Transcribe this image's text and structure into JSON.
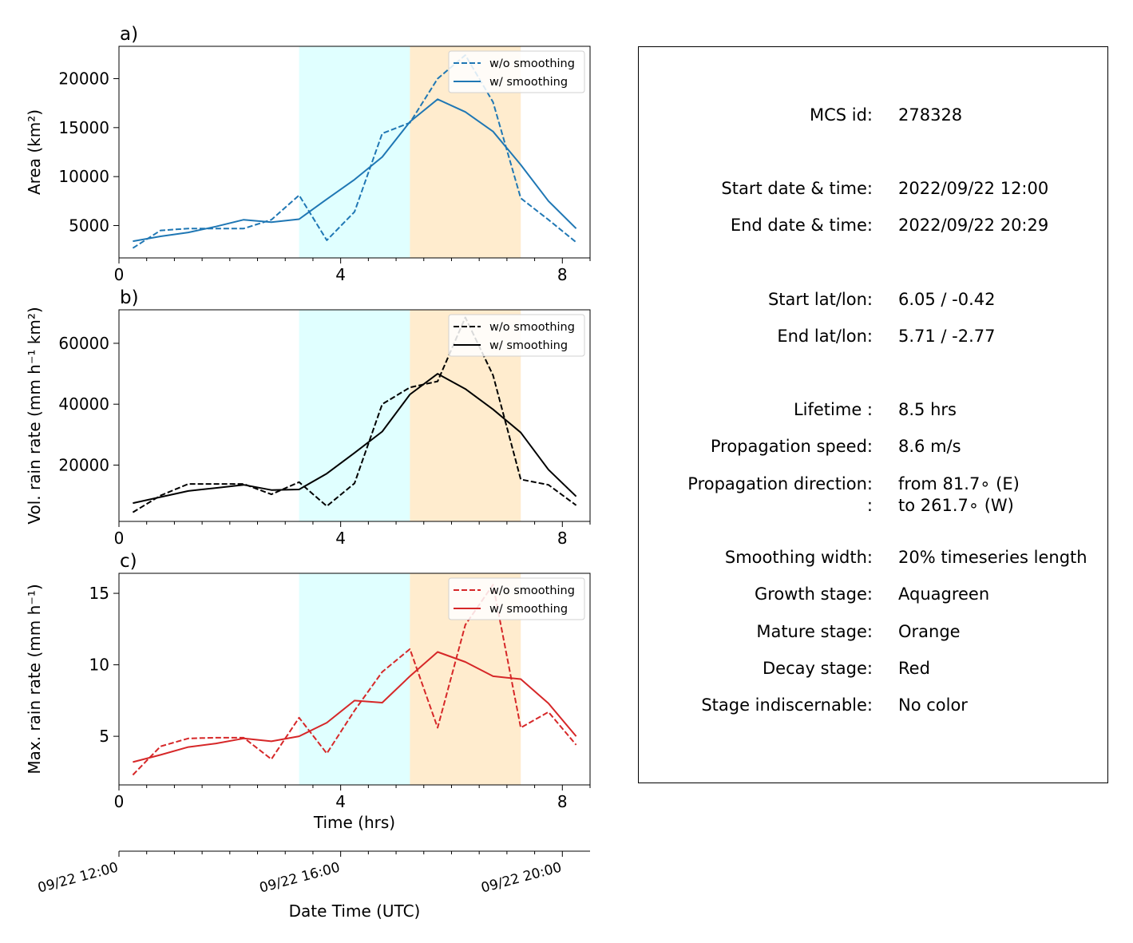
{
  "chart_data": [
    {
      "type": "line",
      "panel_label": "a)",
      "xlabel": "",
      "ylabel": "Area  (km²)",
      "xlim": [
        0,
        8.5
      ],
      "ylim": [
        1700,
        23300
      ],
      "xticks": [
        0,
        4,
        8
      ],
      "yticks": [
        5000,
        10000,
        15000,
        20000
      ],
      "stages": [
        {
          "name": "Growth stage",
          "x0": 3.25,
          "x1": 5.25,
          "color": "#e0ffff"
        },
        {
          "name": "Mature stage",
          "x0": 5.25,
          "x1": 7.25,
          "color": "#ffecce"
        }
      ],
      "legend_position": "upper right",
      "series": [
        {
          "name": "w/o smoothing",
          "style": "dashed",
          "color": "#1f77b4",
          "x": [
            0.25,
            0.75,
            1.25,
            1.75,
            2.25,
            2.75,
            3.25,
            3.75,
            4.25,
            4.75,
            5.25,
            5.75,
            6.25,
            6.75,
            7.25,
            7.75,
            8.25
          ],
          "y": [
            2700,
            4500,
            4700,
            4700,
            4700,
            5600,
            8100,
            3500,
            6400,
            14400,
            15500,
            20000,
            22400,
            17600,
            7800,
            5600,
            3300
          ]
        },
        {
          "name": "w/ smoothing",
          "style": "solid",
          "color": "#1f77b4",
          "x": [
            0.25,
            0.75,
            1.25,
            1.75,
            2.25,
            2.75,
            3.25,
            3.75,
            4.25,
            4.75,
            5.25,
            5.75,
            6.25,
            6.75,
            7.25,
            7.75,
            8.25
          ],
          "y": [
            3400,
            3900,
            4300,
            4900,
            5600,
            5350,
            5650,
            7700,
            9700,
            12000,
            15600,
            17900,
            16600,
            14600,
            11200,
            7500,
            4700
          ]
        }
      ]
    },
    {
      "type": "line",
      "panel_label": "b)",
      "xlabel": "",
      "ylabel": "Vol. rain rate (mm h⁻¹ km²)",
      "xlim": [
        0,
        8.5
      ],
      "ylim": [
        1500,
        71000
      ],
      "xticks": [
        0,
        4,
        8
      ],
      "yticks": [
        20000,
        40000,
        60000
      ],
      "stages": [
        {
          "name": "Growth stage",
          "x0": 3.25,
          "x1": 5.25,
          "color": "#e0ffff"
        },
        {
          "name": "Mature stage",
          "x0": 5.25,
          "x1": 7.25,
          "color": "#ffecce"
        }
      ],
      "legend_position": "upper right",
      "series": [
        {
          "name": "w/o smoothing",
          "style": "dashed",
          "color": "#000000",
          "x": [
            0.25,
            0.75,
            1.25,
            1.75,
            2.25,
            2.75,
            3.25,
            3.75,
            4.25,
            4.75,
            5.25,
            5.75,
            6.25,
            6.75,
            7.25,
            7.75,
            8.25
          ],
          "y": [
            4500,
            10000,
            13800,
            13800,
            13800,
            10400,
            14400,
            6500,
            14000,
            40000,
            45500,
            47500,
            68500,
            49500,
            15300,
            13500,
            6800
          ]
        },
        {
          "name": "w/ smoothing",
          "style": "solid",
          "color": "#000000",
          "x": [
            0.25,
            0.75,
            1.25,
            1.75,
            2.25,
            2.75,
            3.25,
            3.75,
            4.25,
            4.75,
            5.25,
            5.75,
            6.25,
            6.75,
            7.25,
            7.75,
            8.25
          ],
          "y": [
            7500,
            9500,
            11500,
            12500,
            13500,
            11800,
            12000,
            17200,
            24000,
            31000,
            43200,
            50000,
            45000,
            38300,
            30700,
            18500,
            9700
          ]
        }
      ]
    },
    {
      "type": "line",
      "panel_label": "c)",
      "xlabel": "Time (hrs)",
      "ylabel": "Max. rain rate  (mm h⁻¹)",
      "xlim": [
        0,
        8.5
      ],
      "ylim": [
        1.6,
        16.4
      ],
      "xticks": [
        0,
        4,
        8
      ],
      "yticks": [
        5,
        10,
        15
      ],
      "stages": [
        {
          "name": "Growth stage",
          "x0": 3.25,
          "x1": 5.25,
          "color": "#e0ffff"
        },
        {
          "name": "Mature stage",
          "x0": 5.25,
          "x1": 7.25,
          "color": "#ffecce"
        }
      ],
      "legend_position": "upper right",
      "series": [
        {
          "name": "w/o smoothing",
          "style": "dashed",
          "color": "#d62728",
          "x": [
            0.25,
            0.75,
            1.25,
            1.75,
            2.25,
            2.75,
            3.25,
            3.75,
            4.25,
            4.75,
            5.25,
            5.75,
            6.25,
            6.75,
            7.25,
            7.75,
            8.25
          ],
          "y": [
            2.3,
            4.3,
            4.85,
            4.9,
            4.9,
            3.4,
            6.3,
            3.8,
            6.8,
            9.5,
            11.1,
            5.6,
            12.8,
            15.6,
            5.6,
            6.7,
            4.4
          ]
        },
        {
          "name": "w/ smoothing",
          "style": "solid",
          "color": "#d62728",
          "x": [
            0.25,
            0.75,
            1.25,
            1.75,
            2.25,
            2.75,
            3.25,
            3.75,
            4.25,
            4.75,
            5.25,
            5.75,
            6.25,
            6.75,
            7.25,
            7.75,
            8.25
          ],
          "y": [
            3.2,
            3.7,
            4.25,
            4.5,
            4.85,
            4.65,
            5.0,
            5.95,
            7.5,
            7.35,
            9.2,
            10.9,
            10.2,
            9.2,
            9.0,
            7.3,
            5.0
          ]
        }
      ]
    }
  ],
  "date_axis": {
    "xlabel": "Date Time (UTC)",
    "tick_labels": [
      "09/22 12:00",
      "09/22 16:00",
      "09/22 20:00"
    ],
    "tick_hours": [
      0,
      4,
      8
    ]
  },
  "info_panel": {
    "rows": [
      {
        "label": "MCS id:",
        "value": "278328"
      },
      {
        "label": "Start date & time:",
        "value": "2022/09/22 12:00"
      },
      {
        "label": "End date & time:",
        "value": "2022/09/22 20:29"
      },
      {
        "label": "Start lat/lon:",
        "value": "6.05 / -0.42"
      },
      {
        "label": "End lat/lon:",
        "value": "5.71 / -2.77"
      },
      {
        "label": "Lifetime :",
        "value": "8.5 hrs"
      },
      {
        "label": "Propagation speed:",
        "value": "8.6 m/s"
      },
      {
        "label": "Propagation direction:",
        "value": "from  81.7∘ (E)"
      },
      {
        "label": ":",
        "value": "to   261.7∘ (W)"
      },
      {
        "label": "Smoothing width:",
        "value": "20% timeseries length"
      },
      {
        "label": "Growth stage:",
        "value": "Aquagreen"
      },
      {
        "label": "Mature stage:",
        "value": "Orange"
      },
      {
        "label": "Decay stage:",
        "value": "Red"
      },
      {
        "label": "Stage indiscernable:",
        "value": "No color"
      }
    ]
  }
}
